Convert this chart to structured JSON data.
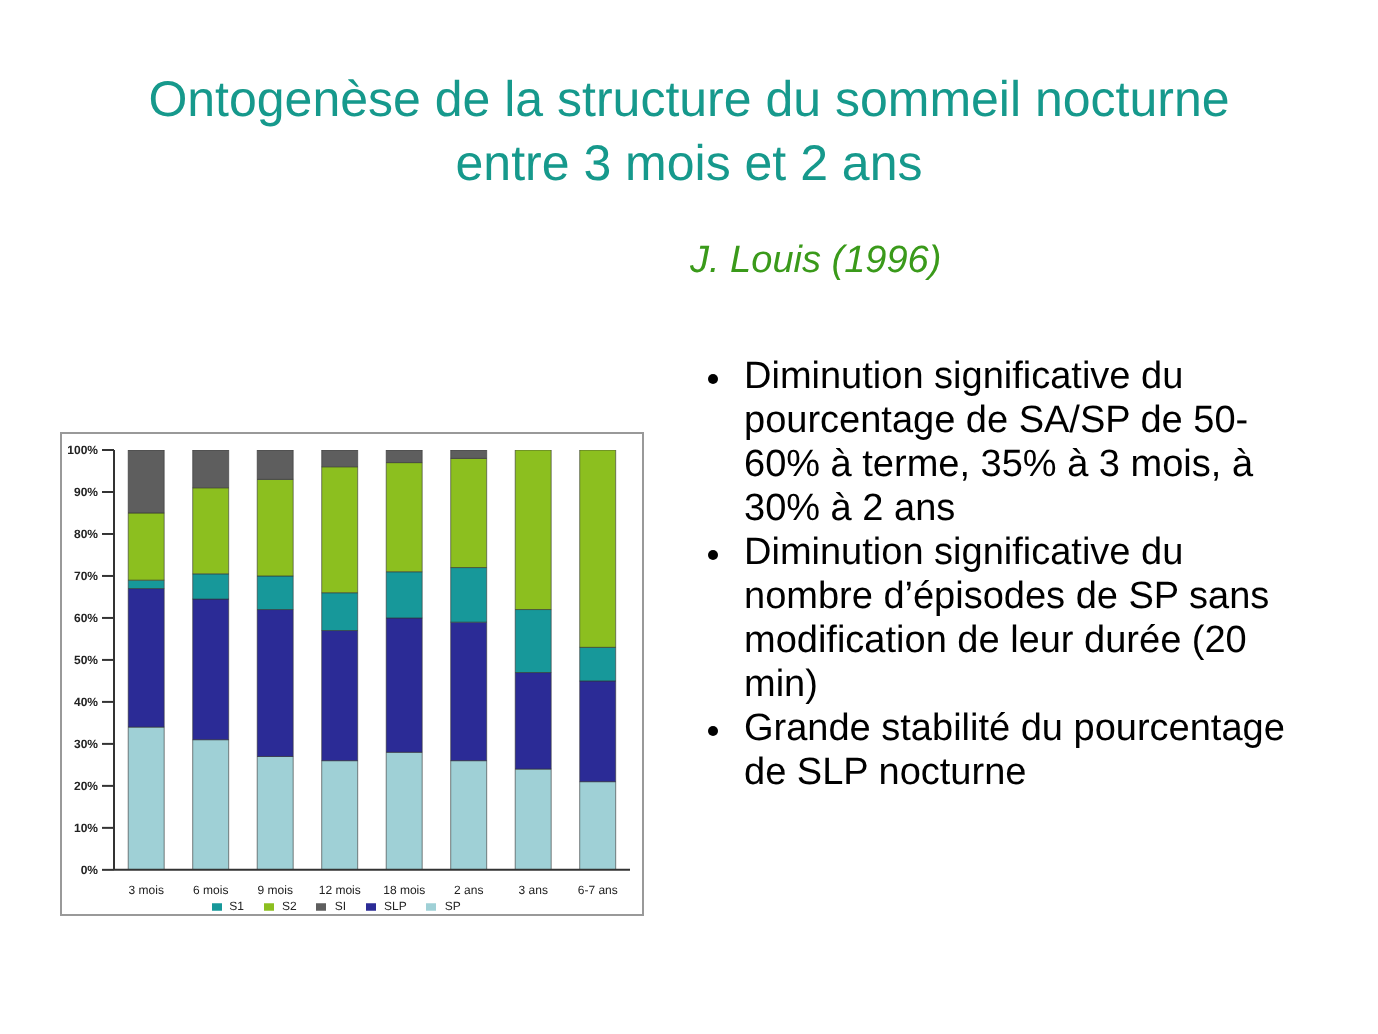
{
  "chart_data": {
    "type": "bar",
    "stacked": true,
    "title": "Ontogenèse de la structure du sommeil nocturne entre 3 mois et 2 ans",
    "subtitle": "J. Louis (1996)",
    "categories": [
      "3 mois",
      "6 mois",
      "9 mois",
      "12 mois",
      "18 mois",
      "2 ans",
      "3 ans",
      "6-7 ans"
    ],
    "series": [
      {
        "name": "SP",
        "color": "#9fd0d6",
        "values": [
          34,
          31,
          27,
          26,
          28,
          26,
          24,
          21
        ]
      },
      {
        "name": "SLP",
        "color": "#2b2b96",
        "values": [
          33,
          33.5,
          35,
          31,
          32,
          33,
          23,
          24
        ]
      },
      {
        "name": "S1",
        "color": "#17989a",
        "values": [
          2,
          6,
          8,
          9,
          11,
          13,
          15,
          8
        ]
      },
      {
        "name": "S2",
        "color": "#8cbf1f",
        "values": [
          16,
          20.5,
          23,
          30,
          26,
          26,
          38,
          47
        ]
      },
      {
        "name": "SI",
        "color": "#5e5e5e",
        "values": [
          15,
          9,
          7,
          4,
          3,
          2,
          0,
          0
        ]
      }
    ],
    "ylim": [
      0,
      100
    ],
    "yticks": [
      {
        "value": 0,
        "label": "0%"
      },
      {
        "value": 10,
        "label": "10%"
      },
      {
        "value": 20,
        "label": "20%"
      },
      {
        "value": 30,
        "label": "30%"
      },
      {
        "value": 40,
        "label": "40%"
      },
      {
        "value": 50,
        "label": "50%"
      },
      {
        "value": 60,
        "label": "60%"
      },
      {
        "value": 70,
        "label": "70%"
      },
      {
        "value": 80,
        "label": "80%"
      },
      {
        "value": 90,
        "label": "90%"
      },
      {
        "value": 100,
        "label": "100%"
      }
    ],
    "grid": false,
    "legend": "bottom",
    "annotations": [
      "Diminution significative du pourcentage de SA/SP de 50-60% à terme, 35% à 3 mois, à 30% à 2 ans",
      "Diminution significative du nombre d’épisodes de SP sans modification de leur durée (20 min)",
      "Grande stabilité du pourcentage de SLP nocturne"
    ]
  }
}
